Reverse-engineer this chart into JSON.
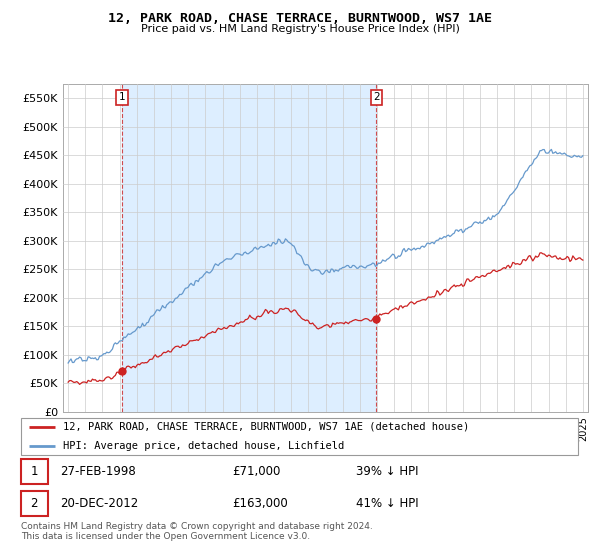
{
  "title": "12, PARK ROAD, CHASE TERRACE, BURNTWOOD, WS7 1AE",
  "subtitle": "Price paid vs. HM Land Registry's House Price Index (HPI)",
  "ylabel_ticks": [
    "£0",
    "£50K",
    "£100K",
    "£150K",
    "£200K",
    "£250K",
    "£300K",
    "£350K",
    "£400K",
    "£450K",
    "£500K",
    "£550K"
  ],
  "ytick_values": [
    0,
    50000,
    100000,
    150000,
    200000,
    250000,
    300000,
    350000,
    400000,
    450000,
    500000,
    550000
  ],
  "ylim": [
    0,
    575000
  ],
  "hpi_color": "#6699cc",
  "price_color": "#cc2222",
  "shade_color": "#ddeeff",
  "sale1_x": 1998.15,
  "sale1_y": 71000,
  "sale1_date": "27-FEB-1998",
  "sale1_price": 71000,
  "sale1_label": "39% ↓ HPI",
  "sale2_x": 2012.97,
  "sale2_y": 163000,
  "sale2_date": "20-DEC-2012",
  "sale2_price": 163000,
  "sale2_label": "41% ↓ HPI",
  "legend_label1": "12, PARK ROAD, CHASE TERRACE, BURNTWOOD, WS7 1AE (detached house)",
  "legend_label2": "HPI: Average price, detached house, Lichfield",
  "footer": "Contains HM Land Registry data © Crown copyright and database right 2024.\nThis data is licensed under the Open Government Licence v3.0.",
  "background_color": "#ffffff",
  "grid_color": "#cccccc",
  "xstart": 1995,
  "xend": 2025,
  "xlim_left": 1994.7,
  "xlim_right": 2025.3
}
